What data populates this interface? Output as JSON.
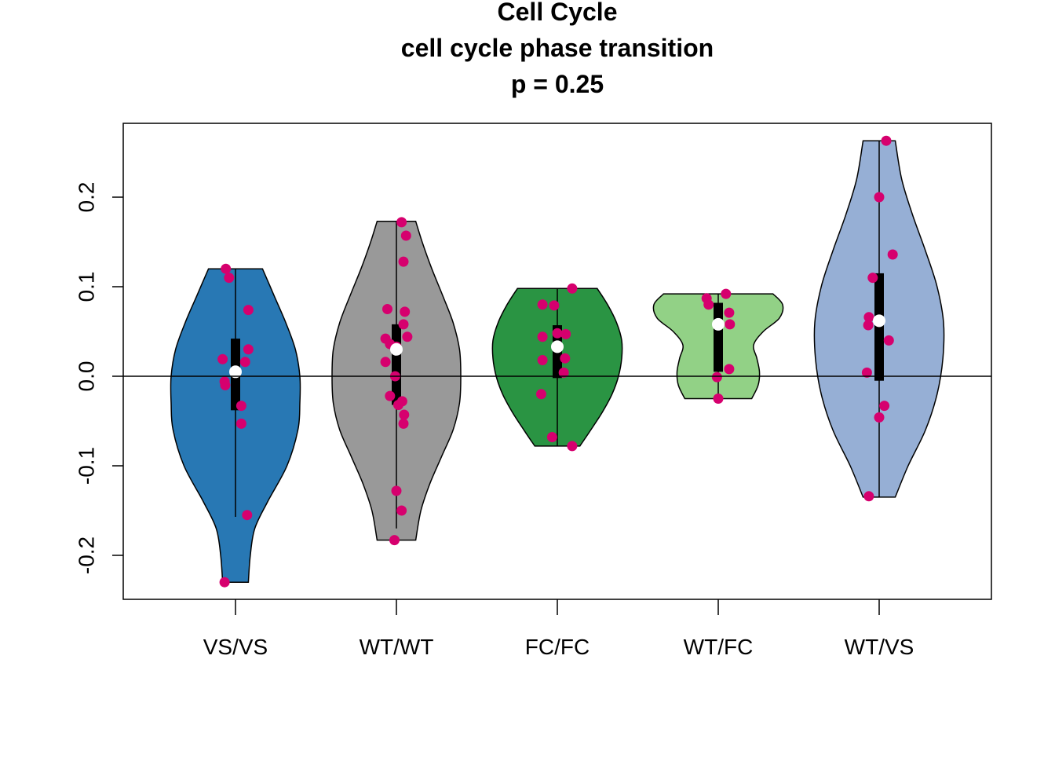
{
  "chart_data": {
    "type": "violin",
    "title": [
      "Cell Cycle",
      "cell cycle phase transition",
      "p = 0.25"
    ],
    "xlabel": "",
    "ylabel": "",
    "ylim": [
      -0.25,
      0.28
    ],
    "yticks": [
      -0.2,
      -0.1,
      0.0,
      0.1,
      0.2
    ],
    "ytick_labels": [
      "-0.2",
      "-0.1",
      "0.0",
      "0.1",
      "0.2"
    ],
    "reference_line_y": 0.0,
    "point_color": "#D6006E",
    "median_color": "#FFFFFF",
    "groups": [
      {
        "name": "VS/VS",
        "color": "#2878B4",
        "median": 0.005,
        "q1": -0.038,
        "q3": 0.042,
        "whisker_low": -0.157,
        "whisker_high": 0.12,
        "min": -0.23,
        "max": 0.12,
        "density_y": [
          -0.23,
          -0.2,
          -0.17,
          -0.14,
          -0.1,
          -0.06,
          -0.03,
          0.0,
          0.03,
          0.06,
          0.09,
          0.12
        ],
        "density_w": [
          0.2,
          0.23,
          0.3,
          0.5,
          0.8,
          0.97,
          1.0,
          1.0,
          0.93,
          0.78,
          0.6,
          0.42
        ],
        "points": [
          0.12,
          0.11,
          0.074,
          0.03,
          0.019,
          0.016,
          -0.006,
          -0.01,
          -0.033,
          -0.053,
          -0.155,
          -0.23
        ],
        "jitter": [
          -0.15,
          -0.1,
          0.2,
          0.2,
          -0.2,
          0.15,
          -0.17,
          -0.16,
          0.09,
          0.09,
          0.18,
          -0.17
        ]
      },
      {
        "name": "WT/WT",
        "color": "#999999",
        "median": 0.03,
        "q1": -0.032,
        "q3": 0.058,
        "whisker_low": -0.17,
        "whisker_high": 0.173,
        "min": -0.183,
        "max": 0.173,
        "density_y": [
          -0.183,
          -0.15,
          -0.12,
          -0.09,
          -0.06,
          -0.03,
          0.0,
          0.03,
          0.06,
          0.09,
          0.12,
          0.15,
          0.173
        ],
        "density_w": [
          0.3,
          0.38,
          0.52,
          0.7,
          0.88,
          0.98,
          1.0,
          0.98,
          0.88,
          0.72,
          0.55,
          0.4,
          0.3
        ],
        "points": [
          0.172,
          0.157,
          0.128,
          0.075,
          0.072,
          0.058,
          0.044,
          0.042,
          0.036,
          0.033,
          0.03,
          0.016,
          0.0,
          -0.022,
          -0.028,
          -0.032,
          -0.043,
          -0.053,
          -0.128,
          -0.15,
          -0.183
        ],
        "jitter": [
          0.08,
          0.15,
          0.11,
          -0.14,
          0.13,
          0.11,
          0.17,
          -0.17,
          -0.1,
          0.0,
          0.0,
          -0.17,
          -0.02,
          -0.1,
          0.09,
          0.03,
          0.12,
          0.11,
          0.0,
          0.08,
          -0.03
        ]
      },
      {
        "name": "FC/FC",
        "color": "#2A9443",
        "median": 0.033,
        "q1": -0.002,
        "q3": 0.057,
        "whisker_low": -0.078,
        "whisker_high": 0.098,
        "min": -0.078,
        "max": 0.098,
        "density_y": [
          -0.078,
          -0.06,
          -0.04,
          -0.02,
          0.0,
          0.02,
          0.04,
          0.06,
          0.08,
          0.098
        ],
        "density_w": [
          0.35,
          0.52,
          0.7,
          0.85,
          0.95,
          1.0,
          1.0,
          0.92,
          0.78,
          0.62
        ],
        "points": [
          0.098,
          0.08,
          0.079,
          0.048,
          0.047,
          0.044,
          0.033,
          0.02,
          0.018,
          0.004,
          -0.02,
          -0.068,
          -0.078
        ],
        "jitter": [
          0.23,
          -0.23,
          -0.05,
          0.0,
          0.13,
          -0.23,
          0.0,
          0.12,
          -0.23,
          0.1,
          -0.25,
          -0.08,
          0.23
        ]
      },
      {
        "name": "WT/FC",
        "color": "#92D186",
        "median": 0.058,
        "q1": 0.005,
        "q3": 0.082,
        "whisker_low": -0.025,
        "whisker_high": 0.092,
        "min": -0.025,
        "max": 0.092,
        "density_y": [
          -0.025,
          -0.01,
          0.005,
          0.02,
          0.035,
          0.05,
          0.065,
          0.08,
          0.092
        ],
        "density_w": [
          0.52,
          0.62,
          0.64,
          0.6,
          0.55,
          0.7,
          0.95,
          1.0,
          0.85
        ],
        "points": [
          0.092,
          0.087,
          0.08,
          0.071,
          0.058,
          0.058,
          0.008,
          -0.001,
          -0.025
        ],
        "jitter": [
          0.12,
          -0.18,
          -0.15,
          0.17,
          0.02,
          0.18,
          0.17,
          -0.02,
          0.0
        ]
      },
      {
        "name": "WT/VS",
        "color": "#96AFD5",
        "median": 0.062,
        "q1": -0.005,
        "q3": 0.115,
        "whisker_low": -0.135,
        "whisker_high": 0.263,
        "min": -0.135,
        "max": 0.263,
        "density_y": [
          -0.135,
          -0.1,
          -0.06,
          -0.02,
          0.02,
          0.06,
          0.1,
          0.14,
          0.18,
          0.22,
          0.263
        ],
        "density_w": [
          0.25,
          0.45,
          0.72,
          0.9,
          0.99,
          1.0,
          0.9,
          0.72,
          0.52,
          0.35,
          0.25
        ],
        "points": [
          0.263,
          0.2,
          0.136,
          0.11,
          0.066,
          0.062,
          0.057,
          0.04,
          0.004,
          -0.033,
          -0.046,
          -0.134
        ],
        "jitter": [
          0.11,
          0.0,
          0.21,
          -0.1,
          -0.16,
          0.0,
          -0.17,
          0.15,
          -0.19,
          0.08,
          0.0,
          -0.16
        ]
      }
    ]
  }
}
